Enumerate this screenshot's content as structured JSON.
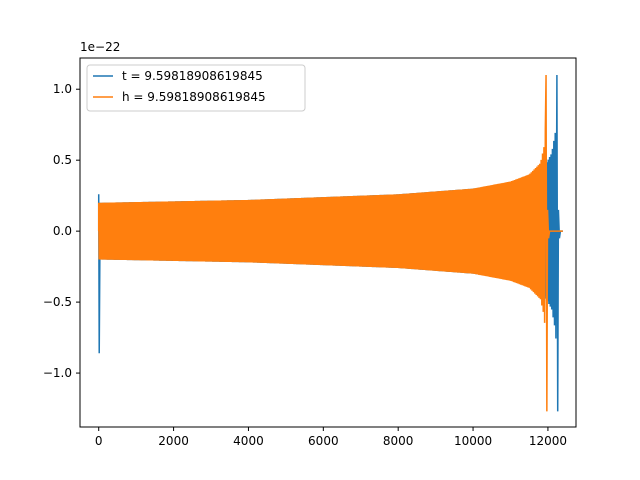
{
  "chart_data": {
    "type": "line",
    "title": "",
    "xlabel": "",
    "ylabel": "",
    "y_offset_label": "1e−22",
    "xlim": [
      -500,
      12750
    ],
    "ylim": [
      -1.38,
      1.22
    ],
    "x_ticks": [
      0,
      2000,
      4000,
      6000,
      8000,
      10000,
      12000
    ],
    "y_ticks": [
      -1.0,
      -0.5,
      0.0,
      0.5,
      1.0
    ],
    "x_tick_labels": [
      "0",
      "2000",
      "4000",
      "6000",
      "8000",
      "10000",
      "12000"
    ],
    "y_tick_labels": [
      "−1.0",
      "−0.5",
      "0.0",
      "0.5",
      "1.0"
    ],
    "grid": false,
    "legend_position": "upper-left",
    "series": [
      {
        "name": "t = 9.59818908619845",
        "color": "#1f77b4",
        "start_x": 0,
        "merger_x": 12280,
        "end_x": 12400,
        "initial_spike": [
          0.26,
          -0.86
        ],
        "envelope": {
          "x": [
            40,
            2000,
            4000,
            6000,
            8000,
            10000,
            11000,
            11600,
            11900,
            12100,
            12200,
            12260
          ],
          "amp": [
            0.2,
            0.21,
            0.22,
            0.24,
            0.26,
            0.3,
            0.34,
            0.39,
            0.45,
            0.55,
            0.7,
            0.95
          ]
        },
        "peak": [
          1.1,
          -1.27
        ]
      },
      {
        "name": "h = 9.59818908619845",
        "color": "#ff7f0e",
        "start_x": 0,
        "merger_x": 11990,
        "end_x": 12400,
        "initial_spike": [
          0.2,
          -0.2
        ],
        "envelope": {
          "x": [
            0,
            2000,
            4000,
            6000,
            8000,
            10000,
            11000,
            11500,
            11800,
            11900,
            11950
          ],
          "amp": [
            0.2,
            0.21,
            0.22,
            0.24,
            0.26,
            0.3,
            0.35,
            0.4,
            0.48,
            0.6,
            0.8
          ]
        },
        "peak": [
          1.1,
          -1.27
        ]
      }
    ]
  }
}
